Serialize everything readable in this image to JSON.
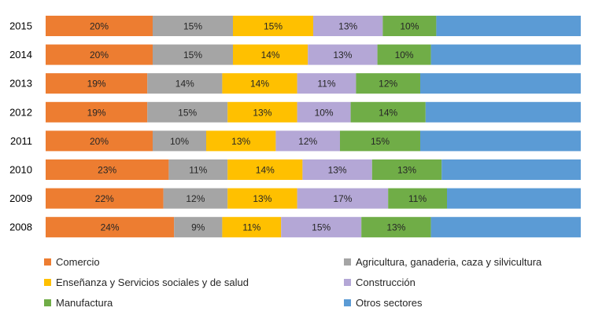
{
  "chart_data": {
    "type": "bar",
    "orientation": "horizontal",
    "stacked": true,
    "normalized": true,
    "categories": [
      "2015",
      "2014",
      "2013",
      "2012",
      "2011",
      "2010",
      "2009",
      "2008"
    ],
    "series": [
      {
        "name": "Comercio",
        "color": "#ED7D31",
        "values": [
          20,
          20,
          19,
          19,
          20,
          23,
          22,
          24
        ],
        "labels": [
          "20%",
          "20%",
          "19%",
          "19%",
          "20%",
          "23%",
          "22%",
          "24%"
        ]
      },
      {
        "name": "Agricultura, ganaderia, caza y silvicultura",
        "color": "#A5A5A5",
        "values": [
          15,
          15,
          14,
          15,
          10,
          11,
          12,
          9
        ],
        "labels": [
          "15%",
          "15%",
          "14%",
          "15%",
          "10%",
          "11%",
          "12%",
          "9%"
        ]
      },
      {
        "name": "Enseñanza  y Servicios sociales y de salud",
        "color": "#FFC000",
        "values": [
          15,
          14,
          14,
          13,
          13,
          14,
          13,
          11
        ],
        "labels": [
          "15%",
          "14%",
          "14%",
          "13%",
          "13%",
          "14%",
          "13%",
          "11%"
        ]
      },
      {
        "name": "Construcción",
        "color": "#B4A7D6",
        "values": [
          13,
          13,
          11,
          10,
          12,
          13,
          17,
          15
        ],
        "labels": [
          "13%",
          "13%",
          "11%",
          "10%",
          "12%",
          "13%",
          "17%",
          "15%"
        ]
      },
      {
        "name": "Manufactura",
        "color": "#70AD47",
        "values": [
          10,
          10,
          12,
          14,
          15,
          13,
          11,
          13
        ],
        "labels": [
          "10%",
          "10%",
          "12%",
          "14%",
          "15%",
          "13%",
          "11%",
          "13%"
        ]
      },
      {
        "name": "Otros sectores",
        "color": "#5B9BD5",
        "values": [
          27,
          28,
          30,
          29,
          30,
          26,
          25,
          28
        ],
        "labels": [
          "",
          "",
          "",
          "",
          "",
          "",
          "",
          ""
        ]
      }
    ],
    "legend_position": "bottom",
    "grid": false
  }
}
